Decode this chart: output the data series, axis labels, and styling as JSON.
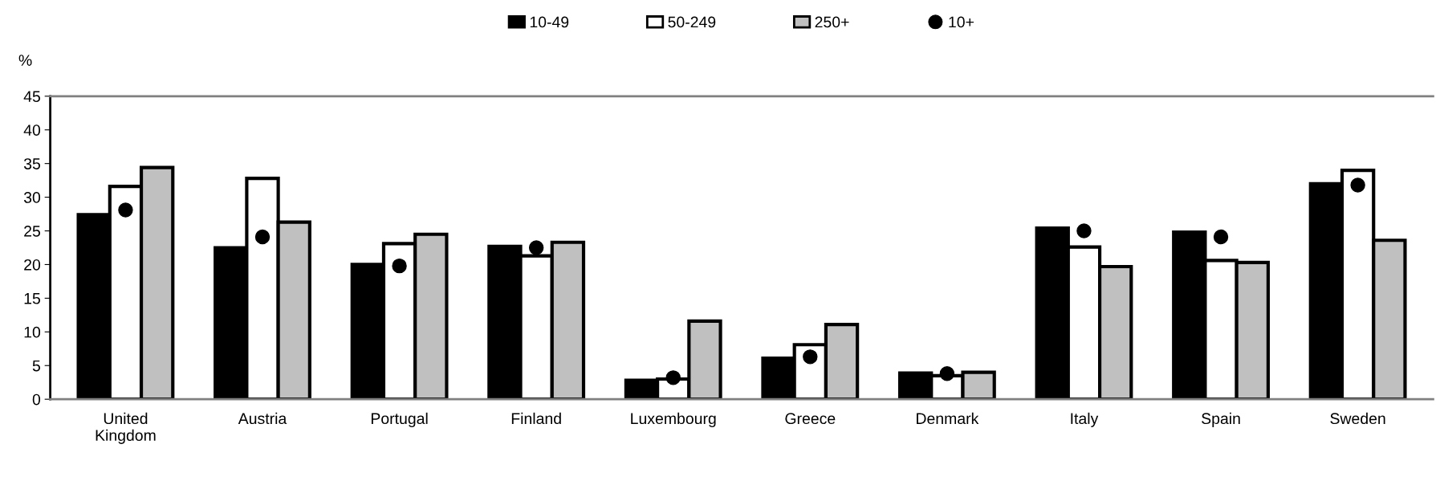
{
  "chart_data": {
    "type": "bar",
    "ylabel": "%",
    "categories": [
      "United\nKingdom",
      "Austria",
      "Portugal",
      "Finland",
      "Luxembourg",
      "Greece",
      "Denmark",
      "Italy",
      "Spain",
      "Sweden"
    ],
    "series": [
      {
        "name": "10-49",
        "color": "#000000",
        "values": [
          27.4,
          22.5,
          20.0,
          22.7,
          2.8,
          6.1,
          3.9,
          25.4,
          24.8,
          32.0
        ]
      },
      {
        "name": "50-249",
        "color": "#ffffff",
        "values": [
          31.6,
          32.8,
          23.1,
          21.3,
          3.0,
          8.1,
          3.5,
          22.6,
          20.6,
          34.0
        ]
      },
      {
        "name": "250+",
        "color": "#c0c0c0",
        "values": [
          34.4,
          26.3,
          24.5,
          23.3,
          11.6,
          11.1,
          4.0,
          19.7,
          20.3,
          23.6
        ]
      },
      {
        "name": "10+",
        "type": "scatter",
        "color": "#000000",
        "marker": "circle",
        "values": [
          28.1,
          24.1,
          19.8,
          22.5,
          3.2,
          6.3,
          3.8,
          25.0,
          24.1,
          31.8
        ]
      }
    ],
    "ylim": [
      0,
      45
    ],
    "yticks": [
      0,
      5,
      10,
      15,
      20,
      25,
      30,
      35,
      40,
      45
    ],
    "grid": false,
    "legend": "top"
  }
}
